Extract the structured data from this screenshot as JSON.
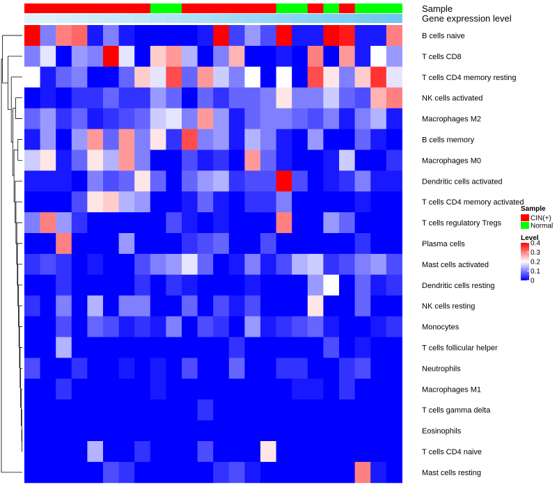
{
  "chart_data": {
    "type": "heatmap",
    "annotation_labels": {
      "sample": "Sample",
      "expression": "Gene expression level"
    },
    "sample_annotation": [
      "CIN(+)",
      "CIN(+)",
      "CIN(+)",
      "CIN(+)",
      "CIN(+)",
      "CIN(+)",
      "CIN(+)",
      "CIN(+)",
      "Normal",
      "Normal",
      "CIN(+)",
      "CIN(+)",
      "CIN(+)",
      "CIN(+)",
      "CIN(+)",
      "CIN(+)",
      "Normal",
      "Normal",
      "CIN(+)",
      "Normal",
      "CIN(+)",
      "Normal",
      "Normal",
      "Normal"
    ],
    "expression_annotation": [
      0.02,
      0.04,
      0.06,
      0.08,
      0.1,
      0.12,
      0.14,
      0.16,
      0.18,
      0.2,
      0.22,
      0.24,
      0.26,
      0.28,
      0.3,
      0.32,
      0.34,
      0.36,
      0.38,
      0.4,
      0.42,
      0.44,
      0.46,
      0.48
    ],
    "rows": [
      "B cells naive",
      "T cells CD8",
      "T cells CD4 memory resting",
      "NK cells activated",
      "Macrophages M2",
      "B cells memory",
      "Macrophages M0",
      "Dendritic cells activated",
      "T cells CD4 memory activated",
      "T cells regulatory  Tregs",
      "Plasma cells",
      "Mast cells activated",
      "Dendritic cells resting",
      "NK cells resting",
      "Monocytes",
      "T cells follicular helper",
      "Neutrophils",
      "Macrophages M1",
      "T cells gamma delta",
      "Eosinophils",
      "T cells CD4 naive",
      "Mast cells resting"
    ],
    "values": [
      [
        0.4,
        0.1,
        0.3,
        0.32,
        0.02,
        0.1,
        0.02,
        0.0,
        0.0,
        0.0,
        0.0,
        0.02,
        0.4,
        0.05,
        0.12,
        0.06,
        0.4,
        0.02,
        0.02,
        0.4,
        0.38,
        0.02,
        0.02,
        0.3
      ],
      [
        0.1,
        0.18,
        0.0,
        0.12,
        0.1,
        0.4,
        0.18,
        0.0,
        0.24,
        0.28,
        0.14,
        0.0,
        0.1,
        0.26,
        0.0,
        0.0,
        0.02,
        0.0,
        0.3,
        0.0,
        0.28,
        0.02,
        0.2,
        0.12
      ],
      [
        0.2,
        0.02,
        0.08,
        0.1,
        0.0,
        0.0,
        0.08,
        0.24,
        0.18,
        0.34,
        0.08,
        0.28,
        0.16,
        0.1,
        0.2,
        0.0,
        0.2,
        0.0,
        0.34,
        0.22,
        0.1,
        0.24,
        0.36,
        0.18
      ],
      [
        0.0,
        0.02,
        0.0,
        0.04,
        0.04,
        0.08,
        0.04,
        0.04,
        0.12,
        0.08,
        0.0,
        0.08,
        0.04,
        0.08,
        0.08,
        0.1,
        0.22,
        0.1,
        0.1,
        0.16,
        0.08,
        0.06,
        0.26,
        0.3
      ],
      [
        0.08,
        0.12,
        0.04,
        0.08,
        0.02,
        0.04,
        0.06,
        0.08,
        0.16,
        0.18,
        0.1,
        0.28,
        0.12,
        0.02,
        0.08,
        0.1,
        0.1,
        0.08,
        0.06,
        0.1,
        0.02,
        0.1,
        0.14,
        0.02
      ],
      [
        0.02,
        0.12,
        0.0,
        0.12,
        0.28,
        0.08,
        0.28,
        0.1,
        0.22,
        0.04,
        0.34,
        0.1,
        0.12,
        0.02,
        0.14,
        0.1,
        0.02,
        0.0,
        0.12,
        0.0,
        0.0,
        0.08,
        0.02,
        0.0
      ],
      [
        0.16,
        0.22,
        0.02,
        0.08,
        0.22,
        0.14,
        0.28,
        0.1,
        0.0,
        0.0,
        0.06,
        0.02,
        0.04,
        0.0,
        0.28,
        0.08,
        0.02,
        0.0,
        0.0,
        0.02,
        0.16,
        0.0,
        0.0,
        0.04
      ],
      [
        0.02,
        0.02,
        0.02,
        0.0,
        0.1,
        0.06,
        0.08,
        0.22,
        0.08,
        0.0,
        0.08,
        0.12,
        0.14,
        0.04,
        0.06,
        0.06,
        0.4,
        0.06,
        0.0,
        0.02,
        0.04,
        0.1,
        0.02,
        0.02
      ],
      [
        0.0,
        0.0,
        0.0,
        0.06,
        0.22,
        0.24,
        0.14,
        0.12,
        0.0,
        0.0,
        0.02,
        0.08,
        0.02,
        0.0,
        0.04,
        0.04,
        0.1,
        0.0,
        0.0,
        0.0,
        0.0,
        0.02,
        0.0,
        0.0
      ],
      [
        0.1,
        0.3,
        0.12,
        0.04,
        0.0,
        0.0,
        0.0,
        0.0,
        0.0,
        0.06,
        0.02,
        0.0,
        0.02,
        0.0,
        0.0,
        0.0,
        0.3,
        0.0,
        0.0,
        0.12,
        0.08,
        0.0,
        0.0,
        0.0
      ],
      [
        0.0,
        0.0,
        0.3,
        0.0,
        0.0,
        0.0,
        0.12,
        0.0,
        0.0,
        0.0,
        0.04,
        0.06,
        0.08,
        0.0,
        0.0,
        0.06,
        0.0,
        0.0,
        0.0,
        0.0,
        0.0,
        0.04,
        0.0,
        0.0
      ],
      [
        0.04,
        0.06,
        0.04,
        0.0,
        0.02,
        0.0,
        0.0,
        0.06,
        0.1,
        0.12,
        0.18,
        0.08,
        0.0,
        0.02,
        0.1,
        0.02,
        0.06,
        0.14,
        0.16,
        0.04,
        0.06,
        0.1,
        0.12,
        0.06
      ],
      [
        0.0,
        0.0,
        0.04,
        0.0,
        0.0,
        0.0,
        0.0,
        0.04,
        0.0,
        0.04,
        0.02,
        0.0,
        0.0,
        0.0,
        0.02,
        0.0,
        0.0,
        0.0,
        0.12,
        0.2,
        0.0,
        0.08,
        0.02,
        0.04
      ],
      [
        0.04,
        0.0,
        0.1,
        0.0,
        0.14,
        0.0,
        0.1,
        0.1,
        0.0,
        0.0,
        0.08,
        0.0,
        0.06,
        0.02,
        0.06,
        0.0,
        0.0,
        0.0,
        0.22,
        0.0,
        0.0,
        0.08,
        0.0,
        0.0
      ],
      [
        0.0,
        0.0,
        0.06,
        0.0,
        0.08,
        0.06,
        0.02,
        0.04,
        0.02,
        0.1,
        0.0,
        0.06,
        0.04,
        0.0,
        0.12,
        0.02,
        0.04,
        0.06,
        0.08,
        0.02,
        0.0,
        0.0,
        0.02,
        0.04
      ],
      [
        0.0,
        0.0,
        0.14,
        0.0,
        0.0,
        0.0,
        0.0,
        0.0,
        0.0,
        0.0,
        0.0,
        0.0,
        0.0,
        0.04,
        0.0,
        0.0,
        0.0,
        0.0,
        0.0,
        0.06,
        0.0,
        0.02,
        0.0,
        0.0
      ],
      [
        0.06,
        0.0,
        0.0,
        0.04,
        0.0,
        0.0,
        0.02,
        0.0,
        0.02,
        0.0,
        0.06,
        0.0,
        0.0,
        0.08,
        0.0,
        0.0,
        0.04,
        0.04,
        0.0,
        0.0,
        0.04,
        0.06,
        0.0,
        0.0
      ],
      [
        0.0,
        0.0,
        0.04,
        0.0,
        0.0,
        0.0,
        0.0,
        0.0,
        0.02,
        0.0,
        0.0,
        0.0,
        0.0,
        0.0,
        0.0,
        0.0,
        0.0,
        0.02,
        0.02,
        0.0,
        0.04,
        0.0,
        0.0,
        0.0
      ],
      [
        0.0,
        0.0,
        0.0,
        0.0,
        0.0,
        0.0,
        0.0,
        0.0,
        0.0,
        0.0,
        0.0,
        0.04,
        0.0,
        0.0,
        0.0,
        0.0,
        0.0,
        0.0,
        0.0,
        0.0,
        0.0,
        0.0,
        0.0,
        0.0
      ],
      [
        0.0,
        0.0,
        0.0,
        0.0,
        0.0,
        0.0,
        0.0,
        0.0,
        0.0,
        0.0,
        0.0,
        0.0,
        0.0,
        0.0,
        0.0,
        0.0,
        0.0,
        0.0,
        0.0,
        0.0,
        0.0,
        0.0,
        0.0,
        0.0
      ],
      [
        0.0,
        0.0,
        0.0,
        0.0,
        0.14,
        0.0,
        0.0,
        0.04,
        0.0,
        0.0,
        0.0,
        0.06,
        0.0,
        0.0,
        0.0,
        0.22,
        0.0,
        0.0,
        0.0,
        0.0,
        0.0,
        0.0,
        0.0,
        0.0
      ],
      [
        0.0,
        0.0,
        0.0,
        0.0,
        0.0,
        0.06,
        0.04,
        0.0,
        0.0,
        0.0,
        0.0,
        0.0,
        0.04,
        0.06,
        0.02,
        0.0,
        0.0,
        0.0,
        0.0,
        0.0,
        0.0,
        0.3,
        0.02,
        0.0
      ]
    ],
    "row_dendrogram": [
      [
        19,
        20,
        0.05
      ],
      [
        22,
        18,
        0.1
      ],
      [
        23,
        17,
        0.2
      ],
      [
        24,
        16,
        0.3
      ],
      [
        25,
        15,
        0.4
      ],
      [
        26,
        14,
        0.5
      ],
      [
        27,
        13,
        0.6
      ],
      [
        28,
        12,
        0.7
      ],
      [
        29,
        11,
        0.8
      ],
      [
        30,
        10,
        0.9
      ],
      [
        31,
        9,
        1.0
      ],
      [
        32,
        8,
        1.15
      ],
      [
        33,
        7,
        1.3
      ],
      [
        5,
        6,
        0.8
      ],
      [
        34,
        35,
        1.5
      ],
      [
        3,
        4,
        1.2
      ],
      [
        36,
        37,
        1.7
      ],
      [
        38,
        2,
        2.0
      ],
      [
        39,
        1,
        2.6
      ],
      [
        40,
        0,
        3.6
      ],
      [
        21,
        41,
        3.8
      ]
    ],
    "color_scale": {
      "domain": [
        0,
        0.2,
        0.4
      ],
      "colors": [
        "#0000ff",
        "#ffffff",
        "#ff0000"
      ]
    },
    "legend": {
      "sample_title": "Sample",
      "sample_entries": [
        {
          "label": "CIN(+)",
          "color": "#ff0000"
        },
        {
          "label": "Normal",
          "color": "#00ff00"
        }
      ],
      "level_title": "Level",
      "level_ticks": [
        "0.4",
        "0.3",
        "0.2",
        "0.1",
        "0"
      ],
      "level_tick_values": [
        0.4,
        0.3,
        0.2,
        0.1,
        0
      ],
      "position": "right"
    },
    "expression_colors": [
      "#e0f3fc",
      "#6cc7f2"
    ]
  }
}
